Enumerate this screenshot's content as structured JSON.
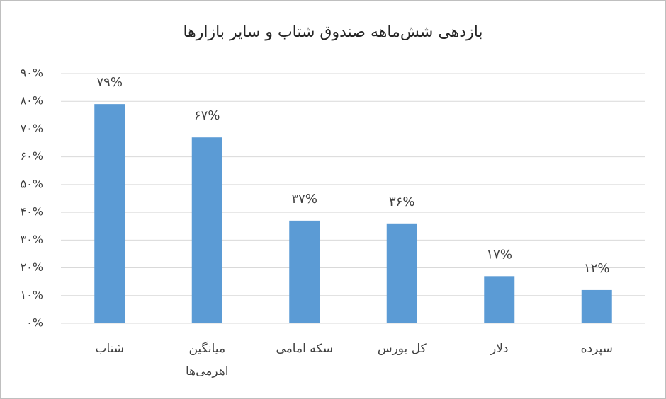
{
  "chart_data": {
    "type": "bar",
    "title": "بازدهی شش‌ماهه صندوق شتاب و سایر بازارها",
    "categories": [
      "شتاب",
      "میانگین اهرمی‌ها",
      "سکه امامی",
      "کل بورس",
      "دلار",
      "سپرده"
    ],
    "values": [
      79,
      67,
      37,
      36,
      17,
      12
    ],
    "value_labels": [
      "۷۹%",
      "۶۷%",
      "۳۷%",
      "۳۶%",
      "۱۷%",
      "۱۲%"
    ],
    "color": "#5b9bd5",
    "ylim": [
      0,
      90
    ],
    "yticks": [
      {
        "value": 0,
        "label": "۰%"
      },
      {
        "value": 10,
        "label": "۱۰%"
      },
      {
        "value": 20,
        "label": "۲۰%"
      },
      {
        "value": 30,
        "label": "۳۰%"
      },
      {
        "value": 40,
        "label": "۴۰%"
      },
      {
        "value": 50,
        "label": "۵۰%"
      },
      {
        "value": 60,
        "label": "۶۰%"
      },
      {
        "value": 70,
        "label": "۷۰%"
      },
      {
        "value": 80,
        "label": "۸۰%"
      },
      {
        "value": 90,
        "label": "۹۰%"
      }
    ],
    "grid": true
  }
}
